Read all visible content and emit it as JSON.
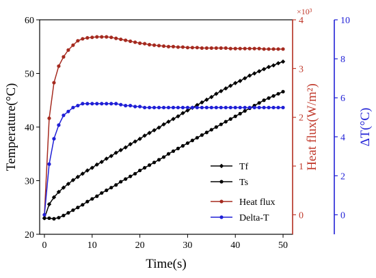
{
  "chart_data": {
    "type": "line",
    "x_axis": {
      "label": "Time(s)",
      "range": [
        -1,
        52
      ],
      "ticks": [
        0,
        10,
        20,
        30,
        40,
        50
      ]
    },
    "y_axes": {
      "left": {
        "label": "Temperature(°C)",
        "range": [
          20,
          60
        ],
        "ticks": [
          20,
          30,
          40,
          50,
          60
        ],
        "color": "#000000"
      },
      "right1": {
        "label": "Heat flux(W/m²)",
        "multiplier_label": "×10³",
        "range": [
          -0.4,
          4
        ],
        "ticks": [
          0,
          1,
          2,
          3,
          4
        ],
        "color": "#c0392b"
      },
      "right2": {
        "label": "ΔT(°C)",
        "range": [
          -1,
          10
        ],
        "ticks": [
          0,
          2,
          4,
          6,
          8,
          10
        ],
        "color": "#1f1fd6"
      }
    },
    "legend": {
      "placement": "bottom-right",
      "entries": [
        {
          "name": "Tf",
          "color": "#000000",
          "marker": "diamond"
        },
        {
          "name": "Ts",
          "color": "#000000",
          "marker": "circle"
        },
        {
          "name": "Heat flux",
          "color": "#a52a1f",
          "marker": "circle"
        },
        {
          "name": "Delta-T",
          "color": "#1f1fd6",
          "marker": "circle"
        }
      ]
    },
    "series": [
      {
        "name": "Tf",
        "axis": "left",
        "color": "#000000",
        "marker": "diamond",
        "x": [
          0,
          1,
          2,
          3,
          4,
          5,
          6,
          7,
          8,
          9,
          10,
          11,
          12,
          13,
          14,
          15,
          16,
          17,
          18,
          19,
          20,
          21,
          22,
          23,
          24,
          25,
          26,
          27,
          28,
          29,
          30,
          31,
          32,
          33,
          34,
          35,
          36,
          37,
          38,
          39,
          40,
          41,
          42,
          43,
          44,
          45,
          46,
          47,
          48,
          49,
          50
        ],
        "y": [
          23.0,
          25.6,
          26.9,
          27.9,
          28.7,
          29.4,
          30.1,
          30.7,
          31.3,
          31.9,
          32.4,
          33.0,
          33.5,
          34.1,
          34.6,
          35.2,
          35.7,
          36.2,
          36.8,
          37.3,
          37.8,
          38.4,
          38.9,
          39.4,
          39.9,
          40.5,
          41.0,
          41.5,
          42.0,
          42.6,
          43.1,
          43.6,
          44.1,
          44.6,
          45.1,
          45.6,
          46.2,
          46.7,
          47.2,
          47.7,
          48.2,
          48.6,
          49.1,
          49.6,
          50.0,
          50.4,
          50.8,
          51.2,
          51.5,
          51.9,
          52.2
        ]
      },
      {
        "name": "Ts",
        "axis": "left",
        "color": "#000000",
        "marker": "circle",
        "x": [
          0,
          1,
          2,
          3,
          4,
          5,
          6,
          7,
          8,
          9,
          10,
          11,
          12,
          13,
          14,
          15,
          16,
          17,
          18,
          19,
          20,
          21,
          22,
          23,
          24,
          25,
          26,
          27,
          28,
          29,
          30,
          31,
          32,
          33,
          34,
          35,
          36,
          37,
          38,
          39,
          40,
          41,
          42,
          43,
          44,
          45,
          46,
          47,
          48,
          49,
          50
        ],
        "y": [
          23.0,
          23.0,
          22.9,
          23.1,
          23.5,
          24.0,
          24.5,
          25.0,
          25.5,
          26.1,
          26.6,
          27.1,
          27.7,
          28.2,
          28.7,
          29.2,
          29.8,
          30.3,
          30.8,
          31.3,
          31.9,
          32.4,
          32.9,
          33.4,
          33.9,
          34.4,
          35.0,
          35.5,
          36.0,
          36.5,
          37.0,
          37.5,
          38.0,
          38.5,
          39.0,
          39.5,
          40.0,
          40.5,
          41.0,
          41.5,
          42.0,
          42.5,
          43.0,
          43.5,
          44.0,
          44.5,
          45.0,
          45.4,
          45.8,
          46.2,
          46.6
        ]
      },
      {
        "name": "Heat flux",
        "axis": "right1",
        "color": "#a52a1f",
        "marker": "circle",
        "x": [
          0,
          1,
          2,
          3,
          4,
          5,
          6,
          7,
          8,
          9,
          10,
          11,
          12,
          13,
          14,
          15,
          16,
          17,
          18,
          19,
          20,
          21,
          22,
          23,
          24,
          25,
          26,
          27,
          28,
          29,
          30,
          31,
          32,
          33,
          34,
          35,
          36,
          37,
          38,
          39,
          40,
          41,
          42,
          43,
          44,
          45,
          46,
          47,
          48,
          49,
          50
        ],
        "y": [
          0,
          1.98,
          2.71,
          3.05,
          3.24,
          3.38,
          3.48,
          3.57,
          3.61,
          3.63,
          3.64,
          3.65,
          3.65,
          3.65,
          3.64,
          3.62,
          3.6,
          3.58,
          3.56,
          3.54,
          3.52,
          3.51,
          3.49,
          3.48,
          3.47,
          3.46,
          3.45,
          3.45,
          3.44,
          3.44,
          3.43,
          3.43,
          3.43,
          3.42,
          3.42,
          3.42,
          3.42,
          3.42,
          3.42,
          3.41,
          3.41,
          3.41,
          3.41,
          3.41,
          3.41,
          3.41,
          3.4,
          3.4,
          3.4,
          3.4,
          3.4
        ]
      },
      {
        "name": "Delta-T",
        "axis": "right2",
        "color": "#1f1fd6",
        "marker": "circle",
        "x": [
          0,
          1,
          2,
          3,
          4,
          5,
          6,
          7,
          8,
          9,
          10,
          11,
          12,
          13,
          14,
          15,
          16,
          17,
          18,
          19,
          20,
          21,
          22,
          23,
          24,
          25,
          26,
          27,
          28,
          29,
          30,
          31,
          32,
          33,
          34,
          35,
          36,
          37,
          38,
          39,
          40,
          41,
          42,
          43,
          44,
          45,
          46,
          47,
          48,
          49,
          50
        ],
        "y": [
          0,
          2.6,
          3.9,
          4.6,
          5.1,
          5.3,
          5.5,
          5.6,
          5.7,
          5.7,
          5.7,
          5.7,
          5.7,
          5.7,
          5.7,
          5.7,
          5.65,
          5.6,
          5.6,
          5.55,
          5.55,
          5.5,
          5.5,
          5.5,
          5.5,
          5.5,
          5.5,
          5.5,
          5.5,
          5.5,
          5.5,
          5.5,
          5.5,
          5.5,
          5.5,
          5.5,
          5.5,
          5.5,
          5.5,
          5.5,
          5.5,
          5.5,
          5.5,
          5.5,
          5.5,
          5.5,
          5.5,
          5.5,
          5.5,
          5.5,
          5.5
        ]
      }
    ]
  }
}
